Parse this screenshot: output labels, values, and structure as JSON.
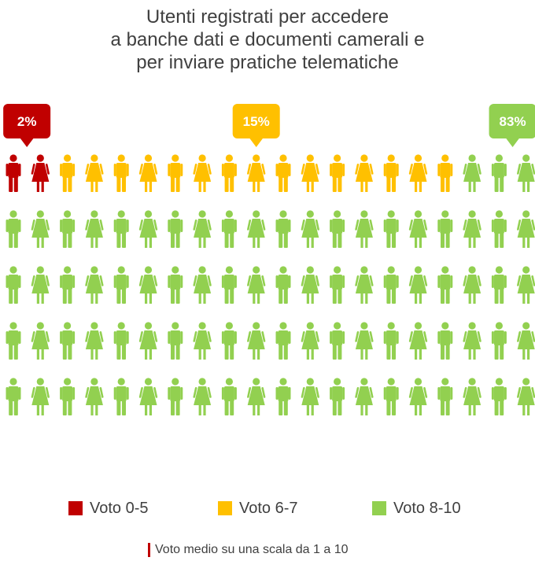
{
  "title_lines": [
    "Utenti registrati per accedere",
    "a banche dati e documenti camerali e",
    "per inviare pratiche telematiche"
  ],
  "chart_data": {
    "type": "pictogram",
    "total_icons": 100,
    "categories": [
      {
        "name": "Voto 0-5",
        "percent": 2,
        "label": "2%",
        "color": "#c00000"
      },
      {
        "name": "Voto 6-7",
        "percent": 15,
        "label": "15%",
        "color": "#ffc000"
      },
      {
        "name": "Voto 8-10",
        "percent": 83,
        "label": "83%",
        "color": "#92d050"
      }
    ],
    "icon_pattern": [
      "man",
      "woman"
    ],
    "legend_placement": "bottom"
  },
  "footnote": "Voto medio su una scala da 1 a 10"
}
